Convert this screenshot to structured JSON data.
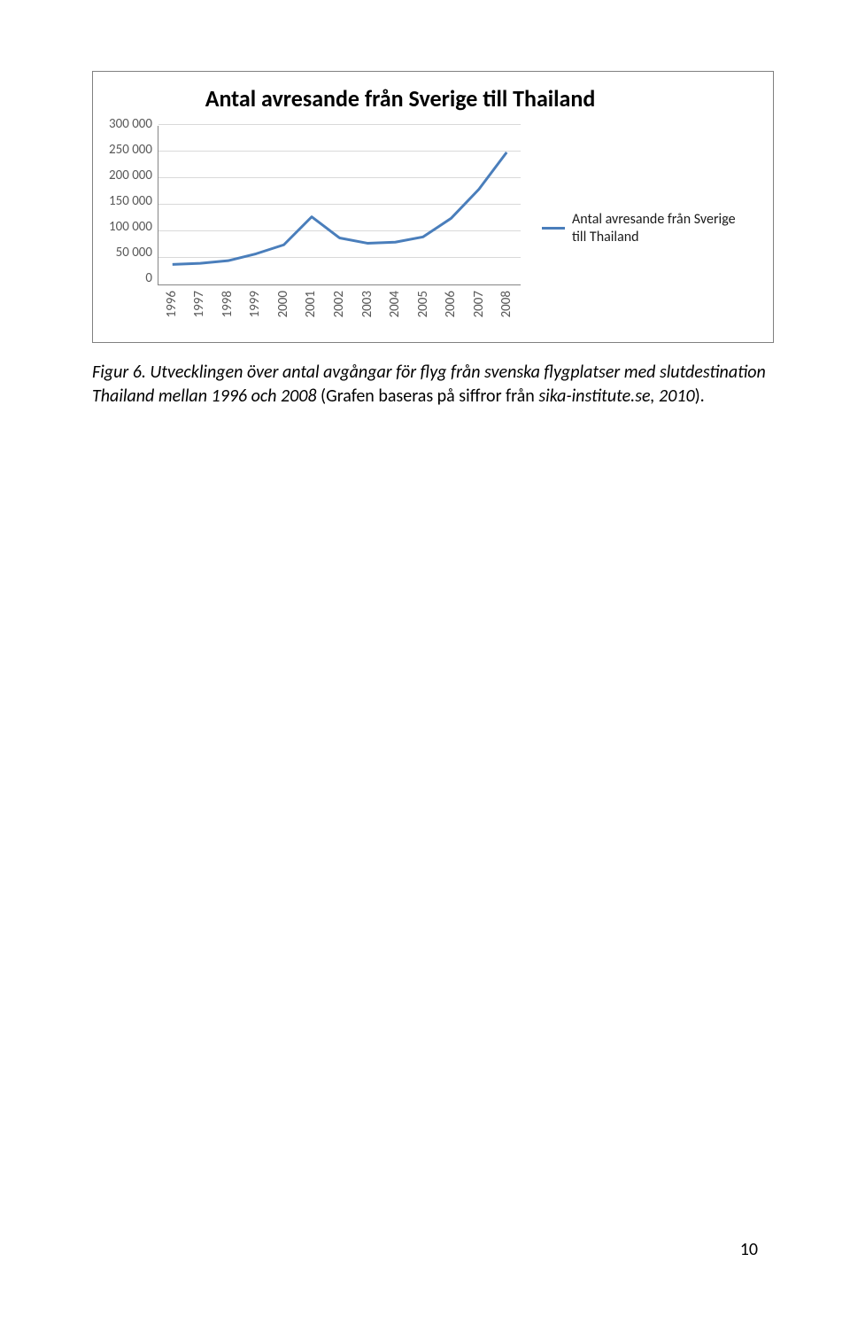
{
  "chart": {
    "type": "line",
    "title": "Antal avresande från Sverige till Thailand",
    "title_fontsize": 26,
    "title_fontweight": 700,
    "x_categories": [
      "1996",
      "1997",
      "1998",
      "1999",
      "2000",
      "2001",
      "2002",
      "2003",
      "2004",
      "2005",
      "2006",
      "2007",
      "2008"
    ],
    "y_ticks": [
      "300 000",
      "250 000",
      "200 000",
      "150 000",
      "100 000",
      "50 000",
      "0"
    ],
    "ylim": [
      0,
      300000
    ],
    "ytick_step": 50000,
    "values": [
      38000,
      40000,
      45000,
      58000,
      75000,
      128000,
      88000,
      78000,
      80000,
      90000,
      125000,
      180000,
      250000
    ],
    "line_color": "#4a7ebb",
    "line_width": 3,
    "grid_color": "#d9d9d9",
    "axis_color": "#858585",
    "background_color": "#ffffff",
    "tick_font_color": "#595959",
    "tick_font_size": 15
  },
  "legend": {
    "swatch_color": "#4a7ebb",
    "label": "Antal avresande från Sverige till Thailand"
  },
  "caption": {
    "prefix": "Figur 6. Utvecklingen över antal avgångar för flyg från svenska flygplatser med slutdestination Thailand mellan 1996 och 2008",
    "middle_plain": " (Grafen baseras på siffror från ",
    "source_italic": "sika-institute.se, 2010",
    "suffix_plain": ")."
  },
  "page_number": "10"
}
